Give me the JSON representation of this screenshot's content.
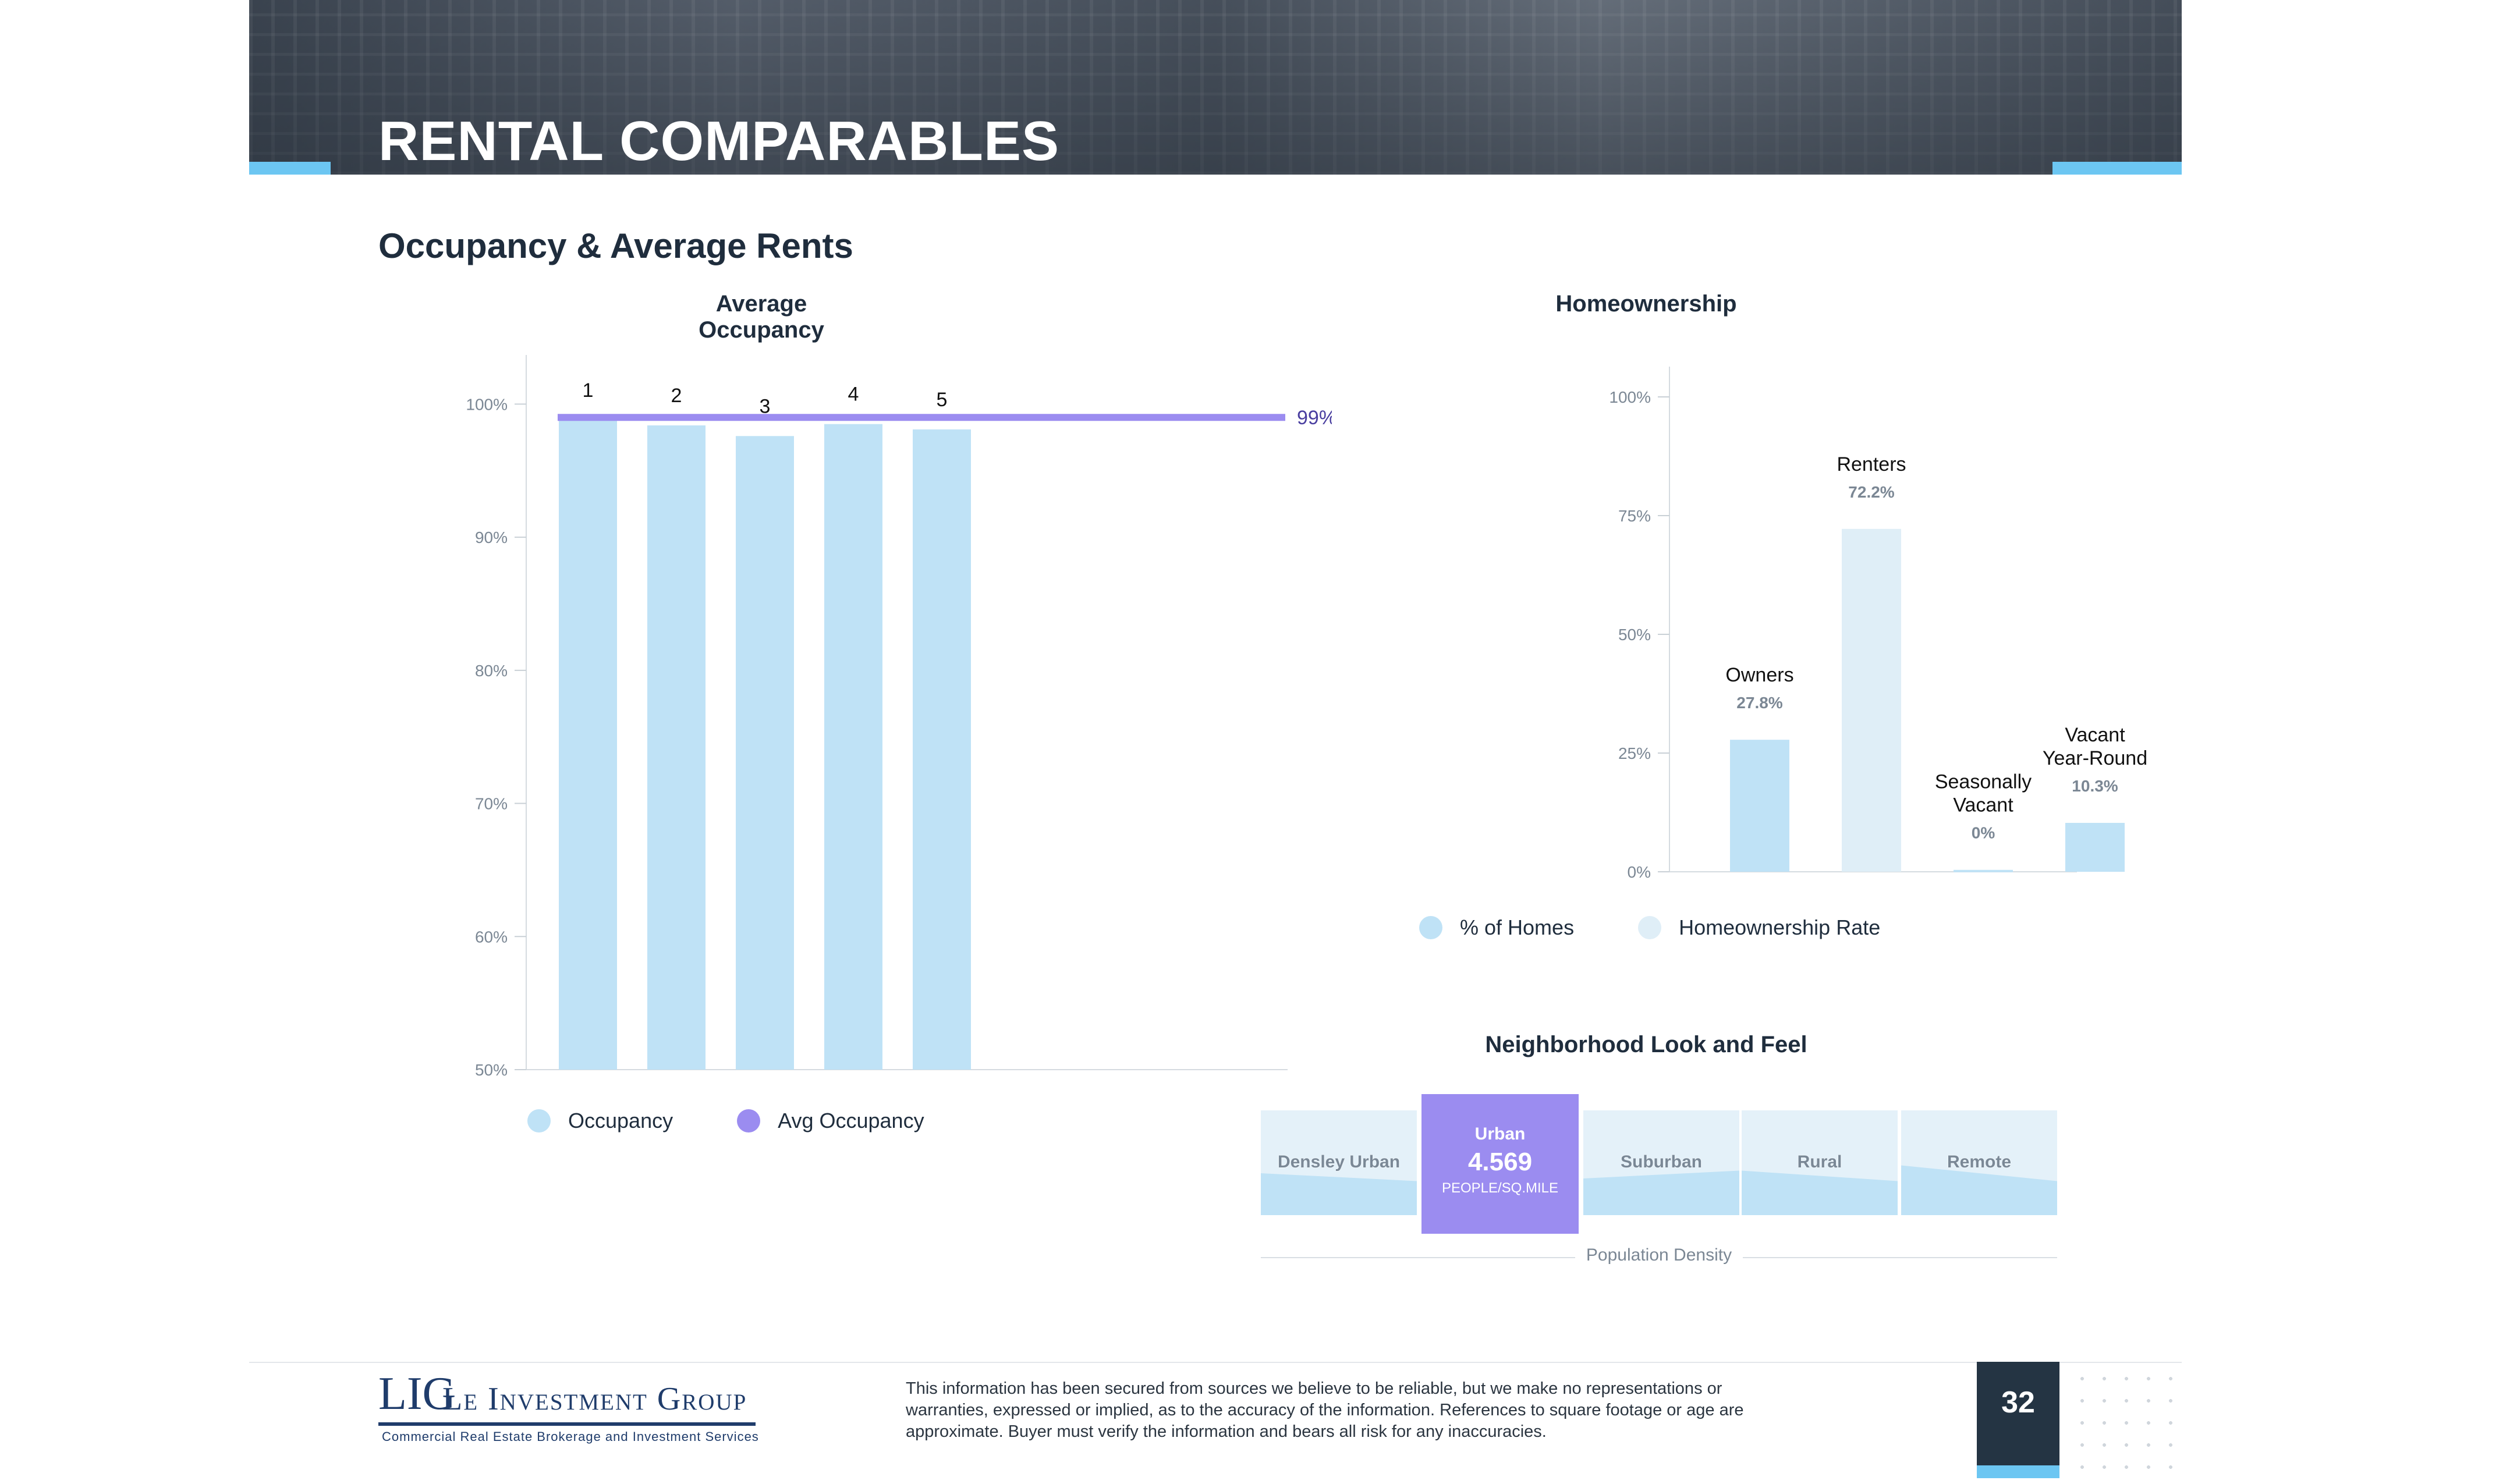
{
  "header": {
    "title": "RENTAL COMPARABLES"
  },
  "section": {
    "title": "Occupancy & Average Rents"
  },
  "occupancy_chart": {
    "title": "Average Occupancy",
    "legend": {
      "occupancy": "Occupancy",
      "avg": "Avg Occupancy"
    },
    "avg_label": "99%",
    "colors": {
      "bar": "#bfe2f6",
      "avg_line": "#9b8cf0"
    }
  },
  "homeownership_chart": {
    "title": "Homeownership",
    "legend": {
      "homes": "% of Homes",
      "rate": "Homeownership Rate"
    },
    "colors": {
      "homes": "#bfe2f6",
      "rate": "#dfeef7"
    }
  },
  "chart_data": [
    {
      "type": "bar",
      "title": "Average Occupancy",
      "categories": [
        "1",
        "2",
        "3",
        "4",
        "5"
      ],
      "series": [
        {
          "name": "Occupancy",
          "values": [
            98.8,
            98.4,
            97.6,
            98.5,
            98.1
          ]
        },
        {
          "name": "Avg Occupancy",
          "values": [
            99,
            99,
            99,
            99,
            99
          ]
        }
      ],
      "yticks": [
        "50%",
        "60%",
        "70%",
        "80%",
        "90%",
        "100%"
      ],
      "ylim": [
        50,
        105
      ],
      "grid": false,
      "legend": "bottom"
    },
    {
      "type": "bar",
      "title": "Homeownership",
      "categories": [
        "Owners",
        "Renters",
        "Seasonally Vacant",
        "Vacant Year-Round"
      ],
      "category_lines": [
        [
          "Owners"
        ],
        [
          "Renters"
        ],
        [
          "Seasonally",
          "Vacant"
        ],
        [
          "Vacant",
          "Year-Round"
        ]
      ],
      "value_labels": [
        "27.8%",
        "72.2%",
        "0%",
        "10.3%"
      ],
      "values": [
        27.8,
        72.2,
        0.4,
        10.3
      ],
      "yticks": [
        "0%",
        "25%",
        "50%",
        "75%",
        "100%"
      ],
      "ylim": [
        0,
        100
      ],
      "grid": false,
      "legend": "bottom"
    }
  ],
  "neighborhood": {
    "title": "Neighborhood Look and Feel",
    "cells": [
      "Densley Urban",
      "Suburban",
      "Rural",
      "Remote"
    ],
    "selected": {
      "label": "Urban",
      "value": "4.569",
      "unit": "PEOPLE/SQ.MILE"
    },
    "axis_label": "Population Density"
  },
  "footer": {
    "logo_mark": "LIG",
    "logo_name": "Le Investment Group",
    "logo_tagline": "Commercial Real Estate Brokerage and Investment Services",
    "disclaimer": "This information has been secured from sources we believe to be reliable, but we make no representations or warranties, expressed or implied, as to the accuracy of the information. References to square footage or age are approximate. Buyer must verify the information and bears all risk for any inaccuracies.",
    "page_number": "32"
  }
}
